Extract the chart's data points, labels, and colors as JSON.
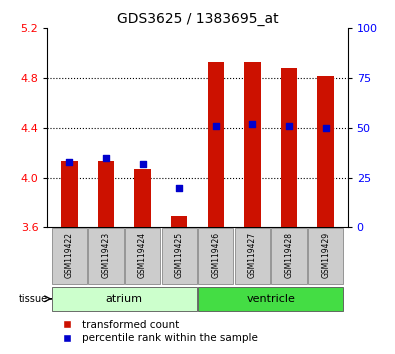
{
  "title": "GDS3625 / 1383695_at",
  "samples": [
    "GSM119422",
    "GSM119423",
    "GSM119424",
    "GSM119425",
    "GSM119426",
    "GSM119427",
    "GSM119428",
    "GSM119429"
  ],
  "transformed_counts": [
    4.13,
    4.13,
    4.07,
    3.69,
    4.93,
    4.93,
    4.88,
    4.82
  ],
  "percentile_ranks": [
    33,
    35,
    32,
    20,
    51,
    52,
    51,
    50
  ],
  "ylim_left": [
    3.6,
    5.2
  ],
  "ylim_right": [
    0,
    100
  ],
  "yticks_left": [
    3.6,
    4.0,
    4.4,
    4.8,
    5.2
  ],
  "yticks_right": [
    0,
    25,
    50,
    75,
    100
  ],
  "bar_color": "#cc1100",
  "dot_color": "#0000cc",
  "atrium_color": "#ccffcc",
  "ventricle_color": "#44dd44",
  "sample_box_color": "#cccccc",
  "tissue_label": "tissue",
  "atrium_label": "atrium",
  "ventricle_label": "ventricle",
  "legend_bar_label": "transformed count",
  "legend_dot_label": "percentile rank within the sample",
  "bar_bottom": 3.6,
  "bar_width": 0.45,
  "dot_size": 22,
  "grid_yticks": [
    4.0,
    4.4,
    4.8
  ],
  "title_fontsize": 10,
  "tick_fontsize": 8,
  "sample_fontsize": 5.5,
  "tissue_fontsize": 8,
  "legend_fontsize": 7.5
}
